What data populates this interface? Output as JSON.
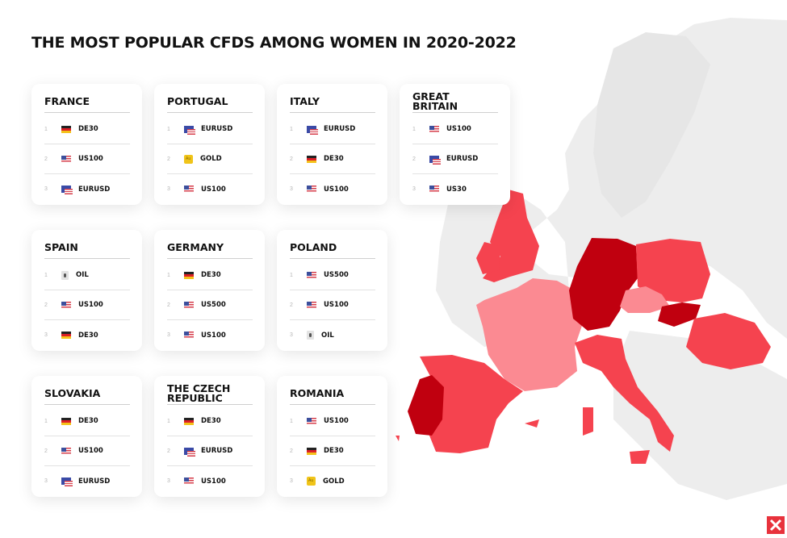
{
  "title": "THE MOST POPULAR CFDS AMONG WOMEN IN 2020-2022",
  "cards": [
    {
      "country": "FRANCE",
      "items": [
        {
          "rank": "1",
          "flag": "de-flag-icon",
          "name": "DE30"
        },
        {
          "rank": "2",
          "flag": "us-flag-icon",
          "name": "US100"
        },
        {
          "rank": "3",
          "flag": "eu-us-flag-icon",
          "name": "EURUSD"
        }
      ]
    },
    {
      "country": "PORTUGAL",
      "items": [
        {
          "rank": "1",
          "flag": "eu-us-flag-icon",
          "name": "EURUSD"
        },
        {
          "rank": "2",
          "flag": "gold-icon",
          "name": "GOLD"
        },
        {
          "rank": "3",
          "flag": "us-flag-icon",
          "name": "US100"
        }
      ]
    },
    {
      "country": "ITALY",
      "items": [
        {
          "rank": "1",
          "flag": "eu-us-flag-icon",
          "name": "EURUSD"
        },
        {
          "rank": "2",
          "flag": "de-flag-icon",
          "name": "DE30"
        },
        {
          "rank": "3",
          "flag": "us-flag-icon",
          "name": "US100"
        }
      ]
    },
    {
      "country": "GREAT BRITAIN",
      "items": [
        {
          "rank": "1",
          "flag": "us-flag-icon",
          "name": "US100"
        },
        {
          "rank": "2",
          "flag": "eu-us-flag-icon",
          "name": "EURUSD"
        },
        {
          "rank": "3",
          "flag": "us-flag-icon",
          "name": "US30"
        }
      ]
    },
    {
      "country": "SPAIN",
      "items": [
        {
          "rank": "1",
          "flag": "oil-icon",
          "name": "OIL"
        },
        {
          "rank": "2",
          "flag": "us-flag-icon",
          "name": "US100"
        },
        {
          "rank": "3",
          "flag": "de-flag-icon",
          "name": "DE30"
        }
      ]
    },
    {
      "country": "GERMANY",
      "items": [
        {
          "rank": "1",
          "flag": "de-flag-icon",
          "name": "DE30"
        },
        {
          "rank": "2",
          "flag": "us-flag-icon",
          "name": "US500"
        },
        {
          "rank": "3",
          "flag": "us-flag-icon",
          "name": "US100"
        }
      ]
    },
    {
      "country": "POLAND",
      "items": [
        {
          "rank": "1",
          "flag": "us-flag-icon",
          "name": "US500"
        },
        {
          "rank": "2",
          "flag": "us-flag-icon",
          "name": "US100"
        },
        {
          "rank": "3",
          "flag": "oil-icon",
          "name": "OIL"
        }
      ]
    },
    {
      "country": "SLOVAKIA",
      "items": [
        {
          "rank": "1",
          "flag": "de-flag-icon",
          "name": "DE30"
        },
        {
          "rank": "2",
          "flag": "us-flag-icon",
          "name": "US100"
        },
        {
          "rank": "3",
          "flag": "eu-us-flag-icon",
          "name": "EURUSD"
        }
      ]
    },
    {
      "country": "THE CZECH REPUBLIC",
      "items": [
        {
          "rank": "1",
          "flag": "de-flag-icon",
          "name": "DE30"
        },
        {
          "rank": "2",
          "flag": "eu-us-flag-icon",
          "name": "EURUSD"
        },
        {
          "rank": "3",
          "flag": "us-flag-icon",
          "name": "US100"
        }
      ]
    },
    {
      "country": "ROMANIA",
      "items": [
        {
          "rank": "1",
          "flag": "us-flag-icon",
          "name": "US100"
        },
        {
          "rank": "2",
          "flag": "de-flag-icon",
          "name": "DE30"
        },
        {
          "rank": "3",
          "flag": "gold-icon",
          "name": "GOLD"
        }
      ]
    }
  ],
  "colors": {
    "dark": "#c0000f",
    "mid": "#f5434f",
    "light": "#fb8a92",
    "map_base": "#ededed",
    "brand": "#e8323c"
  },
  "map_regions": [
    {
      "country": "GREAT BRITAIN",
      "shade": "mid"
    },
    {
      "country": "FRANCE",
      "shade": "light"
    },
    {
      "country": "SPAIN",
      "shade": "mid"
    },
    {
      "country": "PORTUGAL",
      "shade": "dark"
    },
    {
      "country": "GERMANY",
      "shade": "dark"
    },
    {
      "country": "POLAND",
      "shade": "mid"
    },
    {
      "country": "THE CZECH REPUBLIC",
      "shade": "light"
    },
    {
      "country": "SLOVAKIA",
      "shade": "dark"
    },
    {
      "country": "ITALY",
      "shade": "mid"
    },
    {
      "country": "ROMANIA",
      "shade": "mid"
    }
  ]
}
